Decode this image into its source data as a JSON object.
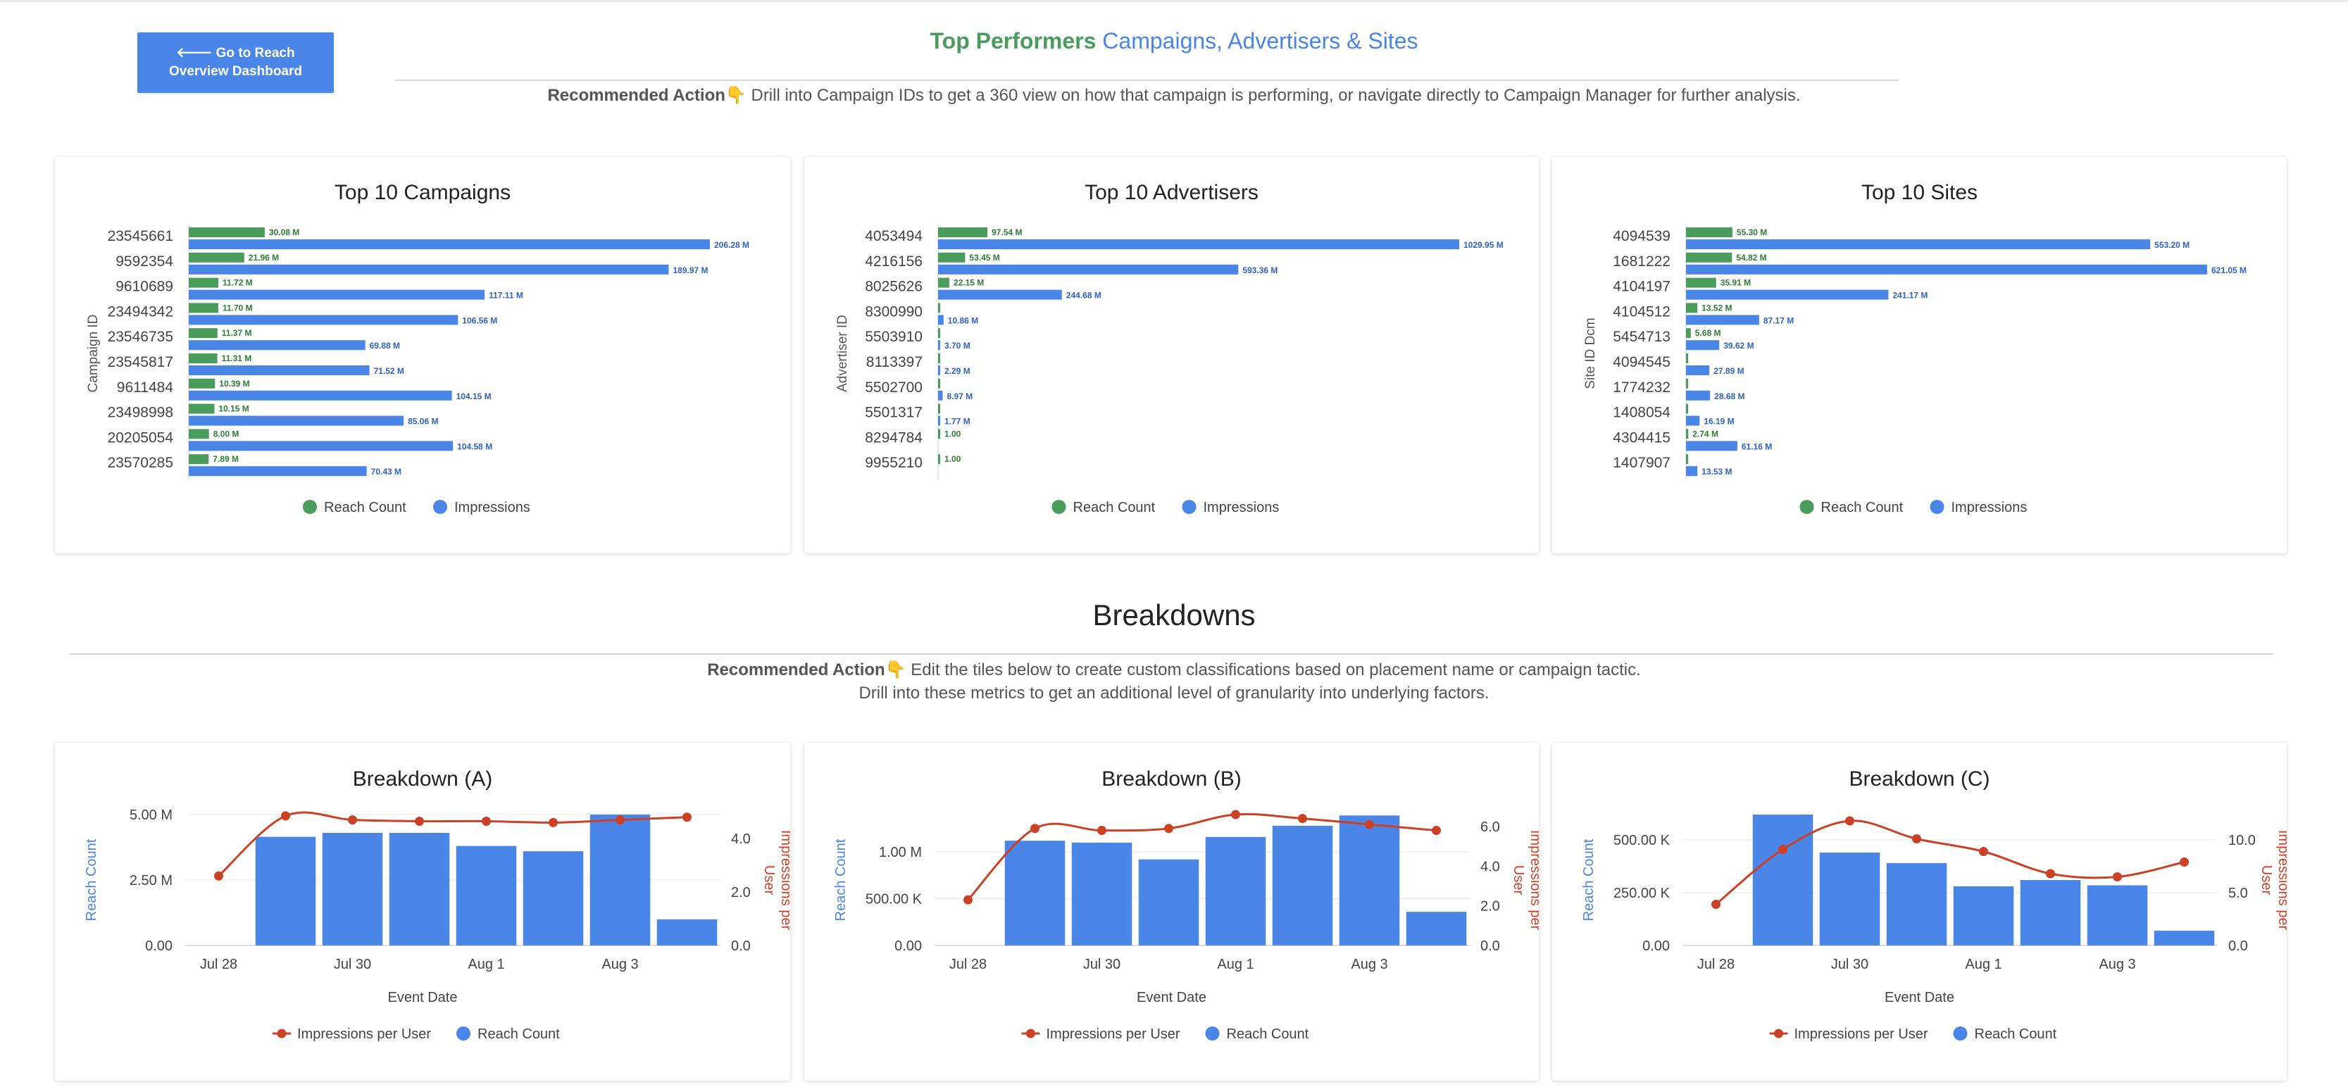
{
  "header": {
    "back_button_line1": "🡐 Go to Reach",
    "back_button_line2": "Overview Dashboard",
    "title_part1": "Top Performers",
    "title_part2": "Campaigns, Advertisers & Sites",
    "recommended_label": "Recommended Action",
    "hand_icon": "👇",
    "recommended_text": "Drill into Campaign IDs to get a 360 view on how that campaign is performing, or navigate directly to Campaign Manager for further analysis."
  },
  "breakdowns": {
    "title": "Breakdowns",
    "recommended_label": "Recommended Action",
    "hand_icon": "👇",
    "recommended_line1": "Edit the tiles below to create custom classifications based on placement name or campaign tactic.",
    "recommended_line2": "Drill into these metrics to get an additional level of granularity into underlying factors."
  },
  "colors": {
    "reach": "#4a9c5d",
    "impressions": "#4a86e8",
    "impressions_per_user": "#cc4125",
    "label_reach": "#2e7d32",
    "label_impr": "#2f62c9"
  },
  "chart_data": [
    {
      "type": "bar",
      "orientation": "horizontal",
      "title": "Top 10 Campaigns",
      "ylabel": "Campaign ID",
      "categories": [
        "23545661",
        "9592354",
        "9610689",
        "23494342",
        "23546735",
        "23545817",
        "9611484",
        "23498998",
        "20205054",
        "23570285"
      ],
      "series": [
        {
          "name": "Reach Count",
          "values": [
            30.08,
            21.96,
            11.72,
            11.7,
            11.37,
            11.31,
            10.39,
            10.15,
            8.0,
            7.89
          ],
          "labels": [
            "30.08 M",
            "21.96 M",
            "11.72 M",
            "11.70 M",
            "11.37 M",
            "11.31 M",
            "10.39 M",
            "10.15 M",
            "8.00 M",
            "7.89 M"
          ]
        },
        {
          "name": "Impressions",
          "values": [
            206.28,
            189.97,
            117.11,
            106.56,
            69.88,
            71.52,
            104.15,
            85.06,
            104.58,
            70.43
          ],
          "labels": [
            "206.28 M",
            "189.97 M",
            "117.11 M",
            "106.56 M",
            "69.88 M",
            "71.52 M",
            "104.15 M",
            "85.06 M",
            "104.58 M",
            "70.43 M"
          ]
        }
      ],
      "xmax": 206.28,
      "legend": "bottom"
    },
    {
      "type": "bar",
      "orientation": "horizontal",
      "title": "Top 10 Advertisers",
      "ylabel": "Advertiser ID",
      "categories": [
        "4053494",
        "4216156",
        "8025626",
        "8300990",
        "5503910",
        "8113397",
        "5502700",
        "5501317",
        "8294784",
        "9955210"
      ],
      "series": [
        {
          "name": "Reach Count",
          "values": [
            97.54,
            53.45,
            22.15,
            0.5,
            0.3,
            0.2,
            0.5,
            0.3,
            1e-06,
            1e-06
          ],
          "labels": [
            "97.54 M",
            "53.45 M",
            "22.15 M",
            "",
            "",
            "",
            "",
            "",
            "1.00",
            "1.00"
          ]
        },
        {
          "name": "Impressions",
          "values": [
            1029.95,
            593.36,
            244.68,
            10.86,
            3.7,
            2.29,
            8.97,
            1.77,
            0,
            0
          ],
          "labels": [
            "1029.95 M",
            "593.36 M",
            "244.68 M",
            "10.86 M",
            "3.70 M",
            "2.29 M",
            "8.97 M",
            "1.77 M",
            "",
            ""
          ]
        }
      ],
      "xmax": 1029.95,
      "legend": "bottom"
    },
    {
      "type": "bar",
      "orientation": "horizontal",
      "title": "Top 10 Sites",
      "ylabel": "Site ID Dcm",
      "categories": [
        "4094539",
        "1681222",
        "4104197",
        "4104512",
        "5454713",
        "4094545",
        "1774232",
        "1408054",
        "4304415",
        "1407907"
      ],
      "series": [
        {
          "name": "Reach Count",
          "values": [
            55.3,
            54.82,
            35.91,
            13.52,
            5.68,
            1.0,
            1.0,
            1.0,
            2.74,
            1.0
          ],
          "labels": [
            "55.30 M",
            "54.82 M",
            "35.91 M",
            "13.52 M",
            "5.68 M",
            "",
            "",
            "",
            "2.74 M",
            ""
          ]
        },
        {
          "name": "Impressions",
          "values": [
            553.2,
            621.05,
            241.17,
            87.17,
            39.62,
            27.89,
            28.68,
            16.19,
            61.16,
            13.53
          ],
          "labels": [
            "553.20 M",
            "621.05 M",
            "241.17 M",
            "87.17 M",
            "39.62 M",
            "27.89 M",
            "28.68 M",
            "16.19 M",
            "61.16 M",
            "13.53 M"
          ]
        }
      ],
      "xmax": 621.05,
      "legend": "bottom"
    },
    {
      "type": "bar+line",
      "title": "Breakdown (A)",
      "xlabel": "Event Date",
      "ylabel": "Reach Count",
      "ylabel_right": "Impressions per User",
      "x_ticks": [
        "Jul 28",
        "Jul 30",
        "Aug 1",
        "Aug 3"
      ],
      "x": [
        "Jul 28",
        "Jul 29",
        "Jul 30",
        "Jul 31",
        "Aug 1",
        "Aug 2",
        "Aug 3",
        "Aug 4"
      ],
      "y_ticks": [
        "5.00 M",
        "2.50 M",
        "0.00"
      ],
      "ylim": [
        0,
        5.0
      ],
      "y2_ticks": [
        "4.0",
        "2.0",
        "0.0"
      ],
      "y2lim": [
        0,
        4.9
      ],
      "series": [
        {
          "name": "Reach Count",
          "axis": "left",
          "values": [
            0,
            4.15,
            4.3,
            4.3,
            3.8,
            3.6,
            5.0,
            1.0
          ]
        },
        {
          "name": "Impressions per User",
          "axis": "right",
          "values": [
            2.6,
            4.85,
            4.7,
            4.65,
            4.65,
            4.6,
            4.7,
            4.8
          ]
        }
      ],
      "legend": "bottom"
    },
    {
      "type": "bar+line",
      "title": "Breakdown (B)",
      "xlabel": "Event Date",
      "ylabel": "Reach Count",
      "ylabel_right": "Impressions per User",
      "x_ticks": [
        "Jul 28",
        "Jul 30",
        "Aug 1",
        "Aug 3"
      ],
      "x": [
        "Jul 28",
        "Jul 29",
        "Jul 30",
        "Jul 31",
        "Aug 1",
        "Aug 2",
        "Aug 3",
        "Aug 4"
      ],
      "y_ticks": [
        "1.00 M",
        "500.00 K",
        "0.00"
      ],
      "ylim": [
        0,
        1.4
      ],
      "y2_ticks": [
        "6.0",
        "4.0",
        "2.0",
        "0.0"
      ],
      "y2lim": [
        0,
        6.6
      ],
      "series": [
        {
          "name": "Reach Count",
          "axis": "left",
          "values": [
            0,
            1.12,
            1.1,
            0.92,
            1.16,
            1.28,
            1.39,
            0.36
          ]
        },
        {
          "name": "Impressions per User",
          "axis": "right",
          "values": [
            2.3,
            5.9,
            5.8,
            5.9,
            6.6,
            6.4,
            6.1,
            5.8
          ]
        }
      ],
      "legend": "bottom"
    },
    {
      "type": "bar+line",
      "title": "Breakdown (C)",
      "xlabel": "Event Date",
      "ylabel": "Reach Count",
      "ylabel_right": "Impressions per User",
      "x_ticks": [
        "Jul 28",
        "Jul 30",
        "Aug 1",
        "Aug 3"
      ],
      "x": [
        "Jul 28",
        "Jul 29",
        "Jul 30",
        "Jul 31",
        "Aug 1",
        "Aug 2",
        "Aug 3",
        "Aug 4"
      ],
      "y_ticks": [
        "500.00 K",
        "250.00 K",
        "0.00"
      ],
      "ylim": [
        0,
        620
      ],
      "y2_ticks": [
        "10.0",
        "5.0",
        "0.0"
      ],
      "y2lim": [
        0,
        12.4
      ],
      "series": [
        {
          "name": "Reach Count",
          "axis": "left",
          "values": [
            0,
            620,
            440,
            390,
            280,
            310,
            285,
            70
          ]
        },
        {
          "name": "Impressions per User",
          "axis": "right",
          "values": [
            3.9,
            9.1,
            11.8,
            10.1,
            8.9,
            6.8,
            6.5,
            7.9
          ]
        }
      ],
      "legend": "bottom"
    }
  ]
}
